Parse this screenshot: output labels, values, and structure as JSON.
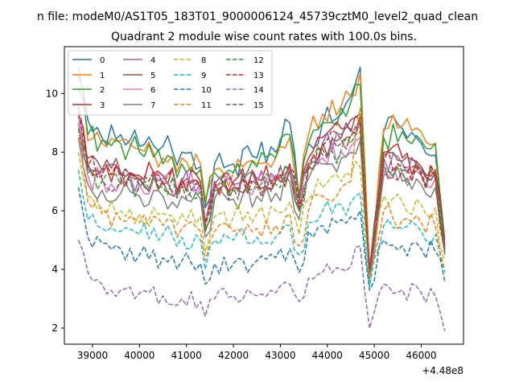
{
  "chart_data": {
    "type": "line",
    "suptitle": "n file: modeM0/AS1T05_183T01_9000006124_45739cztM0_level2_quad_clean",
    "title": "Quadrant 2 module wise count rates with 100.0s bins.",
    "xlabel": "",
    "ylabel": "",
    "x_offset_label": "+4.48e8",
    "xlim": [
      38400,
      46900
    ],
    "ylim": [
      1.45,
      11.6
    ],
    "x_ticks": [
      39000,
      40000,
      41000,
      42000,
      43000,
      44000,
      45000,
      46000
    ],
    "x_tick_labels": [
      "39000",
      "40000",
      "41000",
      "42000",
      "43000",
      "44000",
      "45000",
      "46000"
    ],
    "y_ticks": [
      2,
      4,
      6,
      8,
      10
    ],
    "y_tick_labels": [
      "2",
      "4",
      "6",
      "8",
      "10"
    ],
    "grid": false,
    "legend_position": "upper-left",
    "legend_columns": 4,
    "x_start": 38700,
    "x_step": 100,
    "n_points": 79,
    "anchors_x": [
      38700,
      38900,
      39200,
      39600,
      40000,
      40500,
      40900,
      41300,
      41400,
      41600,
      42000,
      42500,
      42900,
      43200,
      43400,
      43600,
      43900,
      44300,
      44500,
      44700,
      44900,
      45200,
      45600,
      46000,
      46300,
      46500
    ],
    "series": [
      {
        "name": "0",
        "color": "#1f77b4",
        "dash": "solid",
        "mean": 8.0,
        "anchors": [
          10.6,
          9.1,
          8.5,
          8.6,
          8.2,
          8.2,
          8.0,
          7.5,
          6.1,
          7.6,
          7.6,
          7.8,
          8.0,
          9.0,
          6.4,
          8.3,
          9.0,
          9.3,
          9.9,
          10.9,
          3.7,
          8.7,
          8.8,
          8.3,
          7.9,
          5.0
        ]
      },
      {
        "name": "1",
        "color": "#ff7f0e",
        "dash": "solid",
        "mean": 7.8,
        "anchors": [
          10.9,
          8.4,
          8.3,
          8.4,
          8.1,
          7.8,
          7.8,
          7.6,
          6.4,
          7.4,
          7.3,
          7.6,
          7.8,
          8.5,
          6.6,
          8.6,
          9.3,
          9.6,
          9.9,
          10.7,
          4.0,
          8.8,
          8.9,
          8.7,
          8.3,
          5.1
        ]
      },
      {
        "name": "2",
        "color": "#2ca02c",
        "dash": "solid",
        "mean": 7.6,
        "anchors": [
          10.2,
          8.6,
          8.4,
          8.3,
          8.0,
          7.6,
          7.6,
          7.4,
          6.2,
          7.3,
          7.3,
          7.5,
          7.8,
          8.6,
          6.4,
          8.3,
          9.0,
          9.5,
          9.7,
          10.3,
          3.6,
          8.5,
          8.7,
          8.4,
          8.3,
          5.0
        ]
      },
      {
        "name": "3",
        "color": "#d62728",
        "dash": "solid",
        "mean": 7.3,
        "anchors": [
          9.2,
          7.6,
          7.4,
          7.3,
          7.2,
          7.2,
          7.1,
          7.0,
          5.6,
          7.0,
          7.0,
          7.1,
          7.2,
          7.6,
          6.2,
          7.8,
          8.5,
          8.8,
          9.1,
          9.3,
          4.0,
          8.0,
          7.8,
          7.5,
          7.4,
          4.8
        ]
      },
      {
        "name": "4",
        "color": "#9467bd",
        "dash": "solid",
        "mean": 7.2,
        "anchors": [
          9.0,
          7.5,
          7.3,
          7.2,
          7.1,
          7.1,
          7.0,
          6.9,
          5.5,
          6.9,
          6.9,
          7.0,
          7.1,
          7.5,
          6.1,
          7.6,
          8.3,
          8.6,
          8.8,
          9.0,
          3.9,
          7.8,
          7.6,
          7.4,
          7.3,
          4.7
        ]
      },
      {
        "name": "5",
        "color": "#8c564b",
        "dash": "solid",
        "mean": 7.2,
        "anchors": [
          9.4,
          7.8,
          7.4,
          7.3,
          7.1,
          7.0,
          6.9,
          6.8,
          5.3,
          6.8,
          6.8,
          6.9,
          7.0,
          7.4,
          6.0,
          7.5,
          8.3,
          8.5,
          8.7,
          9.1,
          3.8,
          7.9,
          7.7,
          7.5,
          7.3,
          4.8
        ]
      },
      {
        "name": "6",
        "color": "#e377c2",
        "dash": "solid",
        "mean": 7.0,
        "anchors": [
          9.5,
          7.2,
          7.1,
          7.0,
          6.9,
          6.9,
          6.9,
          6.8,
          5.5,
          6.9,
          6.9,
          7.0,
          7.0,
          7.4,
          6.1,
          7.4,
          7.8,
          8.0,
          8.2,
          8.5,
          4.1,
          7.4,
          7.3,
          7.2,
          7.1,
          4.7
        ]
      },
      {
        "name": "7",
        "color": "#7f7f7f",
        "dash": "solid",
        "mean": 6.6,
        "anchors": [
          8.5,
          6.9,
          6.7,
          6.6,
          6.5,
          6.5,
          6.5,
          6.4,
          5.1,
          6.4,
          6.4,
          6.5,
          6.6,
          7.0,
          5.7,
          7.1,
          7.6,
          7.8,
          8.0,
          8.4,
          3.7,
          7.2,
          7.0,
          6.9,
          6.8,
          4.5
        ]
      },
      {
        "name": "8",
        "color": "#bcbd22",
        "dash": "dashed",
        "mean": 6.0,
        "anchors": [
          8.0,
          6.5,
          6.1,
          6.0,
          5.9,
          5.9,
          5.9,
          5.8,
          4.6,
          5.8,
          5.8,
          5.9,
          6.0,
          6.3,
          5.2,
          6.4,
          6.8,
          7.0,
          7.2,
          7.5,
          3.6,
          6.5,
          6.3,
          6.2,
          6.1,
          4.3
        ]
      },
      {
        "name": "9",
        "color": "#17becf",
        "dash": "dashed",
        "mean": 5.2,
        "anchors": [
          7.4,
          5.7,
          5.4,
          5.3,
          5.2,
          5.2,
          5.1,
          5.0,
          4.0,
          5.0,
          5.0,
          5.1,
          5.1,
          5.5,
          4.5,
          5.6,
          6.0,
          6.2,
          6.3,
          6.6,
          3.4,
          5.5,
          5.4,
          5.3,
          5.2,
          3.9
        ]
      },
      {
        "name": "10",
        "color": "#1f77b4",
        "dash": "dashed",
        "mean": 4.6,
        "anchors": [
          6.8,
          5.1,
          4.9,
          4.7,
          4.5,
          4.4,
          4.3,
          4.2,
          3.5,
          4.2,
          4.2,
          4.3,
          4.4,
          4.7,
          3.9,
          5.3,
          5.5,
          5.7,
          5.8,
          6.0,
          3.3,
          5.0,
          4.8,
          4.7,
          4.6,
          3.6
        ]
      },
      {
        "name": "11",
        "color": "#ff7f0e",
        "dash": "dashed",
        "mean": 5.6,
        "anchors": [
          8.8,
          6.3,
          5.9,
          5.7,
          5.6,
          5.5,
          5.4,
          5.3,
          4.3,
          5.3,
          5.3,
          5.4,
          5.5,
          5.9,
          4.8,
          6.0,
          6.5,
          6.8,
          7.0,
          9.5,
          3.7,
          6.0,
          5.7,
          5.6,
          5.5,
          4.0
        ]
      },
      {
        "name": "12",
        "color": "#2ca02c",
        "dash": "dashed",
        "mean": 6.9,
        "anchors": [
          8.8,
          7.3,
          7.0,
          6.9,
          6.8,
          6.8,
          6.8,
          6.7,
          5.4,
          6.7,
          6.7,
          6.8,
          6.9,
          7.3,
          6.0,
          7.4,
          7.9,
          8.1,
          8.3,
          8.7,
          3.9,
          7.5,
          7.3,
          7.2,
          7.1,
          4.6
        ]
      },
      {
        "name": "13",
        "color": "#d62728",
        "dash": "dashed",
        "mean": 7.1,
        "anchors": [
          9.3,
          7.5,
          7.2,
          7.1,
          7.0,
          7.0,
          7.0,
          6.9,
          5.6,
          6.9,
          6.9,
          7.0,
          7.1,
          7.5,
          6.2,
          7.6,
          8.2,
          8.4,
          8.6,
          9.2,
          4.0,
          7.7,
          7.5,
          7.3,
          7.2,
          4.7
        ]
      },
      {
        "name": "14",
        "color": "#9467bd",
        "dash": "dashed",
        "mean": 3.2,
        "anchors": [
          5.0,
          3.9,
          3.5,
          3.3,
          3.2,
          3.1,
          3.0,
          2.9,
          2.4,
          3.0,
          3.1,
          3.1,
          3.2,
          3.5,
          2.9,
          3.7,
          3.9,
          4.0,
          4.1,
          4.8,
          2.0,
          3.5,
          3.3,
          3.2,
          3.1,
          1.9
        ]
      },
      {
        "name": "15",
        "color": "#8c564b",
        "dash": "dashed",
        "mean": 7.0,
        "anchors": [
          9.6,
          7.4,
          7.1,
          7.0,
          6.9,
          6.9,
          6.9,
          6.8,
          5.5,
          6.8,
          6.8,
          6.9,
          7.0,
          7.4,
          6.1,
          7.5,
          8.1,
          8.3,
          8.5,
          9.0,
          3.9,
          7.6,
          7.4,
          7.2,
          7.1,
          4.6
        ]
      }
    ]
  }
}
